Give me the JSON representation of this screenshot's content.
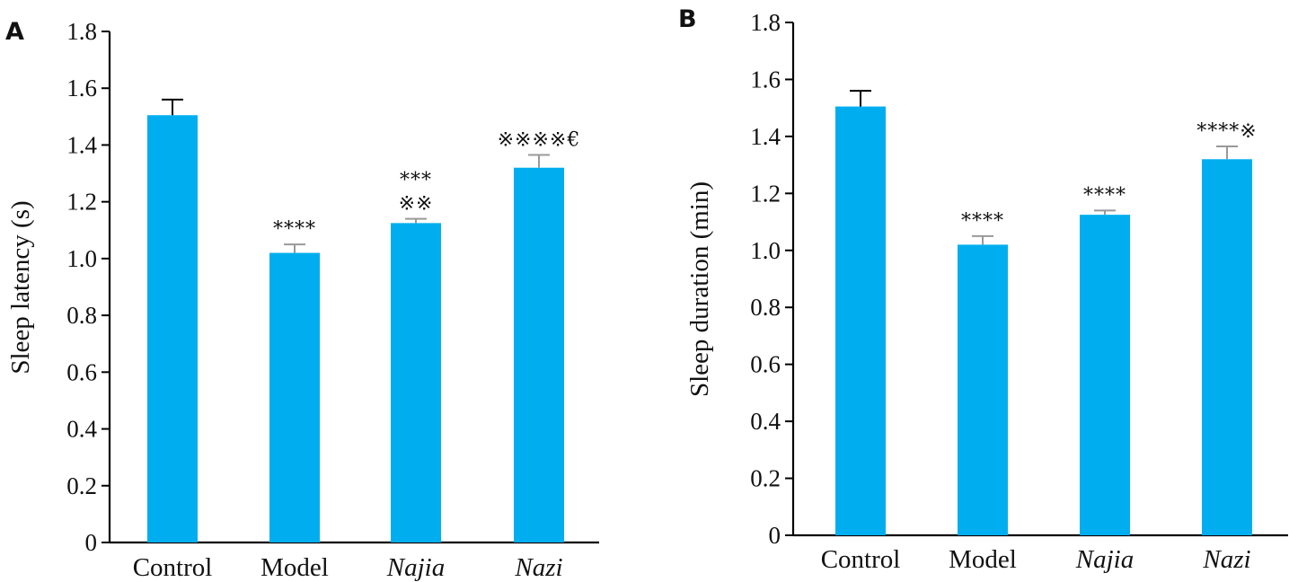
{
  "chart_data": [
    {
      "panel": "A",
      "type": "bar",
      "categories": [
        "Control",
        "Model",
        "Najia",
        "Nazi"
      ],
      "italic_categories": [
        false,
        false,
        true,
        true
      ],
      "values": [
        1.505,
        1.02,
        1.125,
        1.32
      ],
      "errors": [
        0.055,
        0.03,
        0.015,
        0.045
      ],
      "error_colors": [
        "#000000",
        "#999999",
        "#999999",
        "#999999"
      ],
      "annotations": [
        [],
        [
          "****"
        ],
        [
          "***",
          "※※"
        ],
        [
          "※※※※€"
        ]
      ],
      "ylabel": "Sleep latency (s)",
      "xlabel": "",
      "ylim": [
        0,
        1.8
      ],
      "yticks": [
        "0",
        "0.2",
        "0.4",
        "0.6",
        "0.8",
        "1.0",
        "1.2",
        "1.4",
        "1.6",
        "1.8"
      ],
      "bar_color": "#00AEEF"
    },
    {
      "panel": "B",
      "type": "bar",
      "categories": [
        "Control",
        "Model",
        "Najia",
        "Nazi"
      ],
      "italic_categories": [
        false,
        false,
        true,
        true
      ],
      "values": [
        1.505,
        1.02,
        1.125,
        1.32
      ],
      "errors": [
        0.055,
        0.03,
        0.015,
        0.045
      ],
      "error_colors": [
        "#000000",
        "#999999",
        "#999999",
        "#999999"
      ],
      "annotations": [
        [],
        [
          "****"
        ],
        [
          "****"
        ],
        [
          "****※"
        ]
      ],
      "ylabel": "Sleep duration (min)",
      "xlabel": "",
      "ylim": [
        0,
        1.8
      ],
      "yticks": [
        "0",
        "0.2",
        "0.4",
        "0.6",
        "0.8",
        "1.0",
        "1.2",
        "1.4",
        "1.6",
        "1.8"
      ],
      "bar_color": "#00AEEF"
    }
  ]
}
